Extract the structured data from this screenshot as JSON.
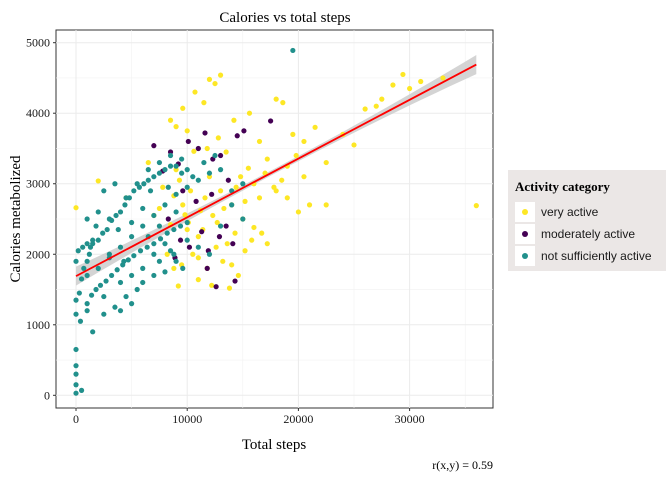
{
  "chart_data": {
    "type": "scatter",
    "title": "Calories vs total steps",
    "xlabel": "Total steps",
    "ylabel": "Calories metabolized",
    "xlim": [
      -1800,
      37500
    ],
    "ylim": [
      -180,
      5180
    ],
    "xticks": [
      "0",
      "10000",
      "20000",
      "30000"
    ],
    "yticks": [
      "0",
      "1000",
      "2000",
      "3000",
      "4000",
      "5000"
    ],
    "grid": true,
    "annotation": "r(x,y) = 0.59",
    "legend": {
      "title": "Activity category",
      "placement": "right",
      "entries": [
        "very active",
        "moderately active",
        "not sufficiently active"
      ]
    },
    "trend_line": {
      "color": "#ff0000",
      "points": [
        [
          0,
          1690
        ],
        [
          36000,
          4690
        ]
      ],
      "band_color": "#cccccc"
    },
    "series": [
      {
        "name": "very active",
        "color": "#fde725",
        "points": [
          [
            0,
            2660
          ],
          [
            2000,
            3040
          ],
          [
            4500,
            2800
          ],
          [
            6500,
            3300
          ],
          [
            7000,
            2550
          ],
          [
            7500,
            2650
          ],
          [
            7800,
            2950
          ],
          [
            8200,
            2000
          ],
          [
            8500,
            2420
          ],
          [
            8800,
            2830
          ],
          [
            9000,
            3200
          ],
          [
            9300,
            3050
          ],
          [
            9600,
            2700
          ],
          [
            9800,
            2560
          ],
          [
            10000,
            2350
          ],
          [
            10300,
            2900
          ],
          [
            10600,
            3460
          ],
          [
            11000,
            2250
          ],
          [
            11200,
            2620
          ],
          [
            11600,
            2800
          ],
          [
            12000,
            3100
          ],
          [
            12300,
            2550
          ],
          [
            12700,
            2450
          ],
          [
            13000,
            2900
          ],
          [
            13300,
            2650
          ],
          [
            13600,
            2150
          ],
          [
            14000,
            2700
          ],
          [
            14400,
            2950
          ],
          [
            14800,
            3100
          ],
          [
            15200,
            2750
          ],
          [
            15500,
            3220
          ],
          [
            16000,
            2380
          ],
          [
            16500,
            2800
          ],
          [
            17000,
            3150
          ],
          [
            17800,
            2950
          ],
          [
            18500,
            3050
          ],
          [
            19000,
            3250
          ],
          [
            19800,
            3400
          ],
          [
            20500,
            3600
          ],
          [
            21500,
            3800
          ],
          [
            22500,
            3300
          ],
          [
            20000,
            2600
          ],
          [
            22500,
            2700
          ],
          [
            24000,
            3700
          ],
          [
            25000,
            3550
          ],
          [
            26000,
            4060
          ],
          [
            27000,
            4100
          ],
          [
            27500,
            4200
          ],
          [
            28500,
            4400
          ],
          [
            29400,
            4550
          ],
          [
            30000,
            4350
          ],
          [
            31000,
            4450
          ],
          [
            33000,
            4500
          ],
          [
            36000,
            2690
          ],
          [
            12500,
            4420
          ],
          [
            13000,
            4540
          ],
          [
            12000,
            4480
          ],
          [
            11500,
            4150
          ],
          [
            10700,
            4300
          ],
          [
            9600,
            4070
          ],
          [
            9000,
            3810
          ],
          [
            8500,
            3900
          ],
          [
            10000,
            3750
          ],
          [
            11800,
            3500
          ],
          [
            12800,
            3650
          ],
          [
            13500,
            3450
          ],
          [
            14200,
            3900
          ],
          [
            15600,
            4000
          ],
          [
            16500,
            3600
          ],
          [
            17200,
            3350
          ],
          [
            18000,
            4200
          ],
          [
            18600,
            4150
          ],
          [
            19500,
            3700
          ],
          [
            20500,
            3100
          ],
          [
            9500,
            1850
          ],
          [
            10500,
            2000
          ],
          [
            11000,
            1640
          ],
          [
            11800,
            1800
          ],
          [
            12600,
            2100
          ],
          [
            13200,
            1900
          ],
          [
            14000,
            1850
          ],
          [
            14600,
            1700
          ],
          [
            15200,
            2050
          ],
          [
            15800,
            2200
          ],
          [
            16700,
            2300
          ],
          [
            17200,
            2150
          ],
          [
            11000,
            1950
          ],
          [
            12200,
            1560
          ],
          [
            13800,
            1520
          ],
          [
            9200,
            1550
          ],
          [
            8800,
            1800
          ],
          [
            10100,
            2450
          ],
          [
            11400,
            2350
          ],
          [
            15000,
            2500
          ],
          [
            14300,
            2300
          ],
          [
            18000,
            2900
          ],
          [
            16000,
            3000
          ],
          [
            19000,
            2800
          ],
          [
            21000,
            2700
          ]
        ]
      },
      {
        "name": "moderately active",
        "color": "#440154",
        "points": [
          [
            7000,
            3540
          ],
          [
            7800,
            3180
          ],
          [
            8500,
            3450
          ],
          [
            9200,
            3280
          ],
          [
            10100,
            3600
          ],
          [
            11000,
            3500
          ],
          [
            11600,
            3720
          ],
          [
            12300,
            3350
          ],
          [
            13000,
            3400
          ],
          [
            14500,
            3680
          ],
          [
            15100,
            3750
          ],
          [
            17500,
            3890
          ],
          [
            9400,
            2200
          ],
          [
            10200,
            2100
          ],
          [
            11800,
            1800
          ],
          [
            12600,
            1540
          ],
          [
            14300,
            1620
          ],
          [
            8900,
            1950
          ],
          [
            11300,
            2320
          ],
          [
            12900,
            2250
          ],
          [
            13500,
            2400
          ],
          [
            14100,
            2150
          ],
          [
            10800,
            2750
          ],
          [
            12200,
            2850
          ],
          [
            9600,
            2900
          ],
          [
            13700,
            3050
          ],
          [
            8300,
            2500
          ],
          [
            11900,
            2050
          ]
        ]
      },
      {
        "name": "not sufficiently active",
        "color": "#21908c",
        "points": [
          [
            0,
            30
          ],
          [
            0,
            150
          ],
          [
            0,
            300
          ],
          [
            0,
            420
          ],
          [
            0,
            650
          ],
          [
            500,
            70
          ],
          [
            0,
            1350
          ],
          [
            300,
            1450
          ],
          [
            500,
            1650
          ],
          [
            700,
            1800
          ],
          [
            1000,
            1900
          ],
          [
            1200,
            2000
          ],
          [
            1500,
            2150
          ],
          [
            2000,
            2200
          ],
          [
            2400,
            2300
          ],
          [
            2800,
            2350
          ],
          [
            3200,
            2480
          ],
          [
            3600,
            2550
          ],
          [
            4000,
            2600
          ],
          [
            4400,
            2700
          ],
          [
            4800,
            2800
          ],
          [
            5200,
            2900
          ],
          [
            5700,
            2950
          ],
          [
            6100,
            3000
          ],
          [
            6500,
            3050
          ],
          [
            7000,
            3100
          ],
          [
            7500,
            3150
          ],
          [
            8000,
            3200
          ],
          [
            8500,
            3250
          ],
          [
            9000,
            3250
          ],
          [
            9500,
            3150
          ],
          [
            10000,
            3200
          ],
          [
            1000,
            1300
          ],
          [
            1400,
            1420
          ],
          [
            1800,
            1500
          ],
          [
            2200,
            1560
          ],
          [
            2700,
            1620
          ],
          [
            3200,
            1700
          ],
          [
            3700,
            1780
          ],
          [
            4200,
            1850
          ],
          [
            4700,
            1920
          ],
          [
            5200,
            1980
          ],
          [
            5800,
            2050
          ],
          [
            6400,
            2100
          ],
          [
            7000,
            2150
          ],
          [
            7600,
            2220
          ],
          [
            8200,
            2300
          ],
          [
            8800,
            2350
          ],
          [
            9400,
            2400
          ],
          [
            10000,
            2450
          ],
          [
            0,
            1150
          ],
          [
            400,
            1050
          ],
          [
            1000,
            1200
          ],
          [
            2500,
            1400
          ],
          [
            4000,
            1600
          ],
          [
            0,
            1900
          ],
          [
            200,
            2050
          ],
          [
            600,
            2100
          ],
          [
            1000,
            2150
          ],
          [
            1500,
            2200
          ],
          [
            1000,
            1700
          ],
          [
            2000,
            1800
          ],
          [
            3000,
            1950
          ],
          [
            4000,
            2100
          ],
          [
            5000,
            2250
          ],
          [
            6000,
            2400
          ],
          [
            7000,
            2550
          ],
          [
            8000,
            2700
          ],
          [
            9000,
            2850
          ],
          [
            10000,
            2950
          ],
          [
            11000,
            3050
          ],
          [
            12000,
            3150
          ],
          [
            6500,
            2250
          ],
          [
            6000,
            1600
          ],
          [
            7000,
            1700
          ],
          [
            8000,
            1750
          ],
          [
            9000,
            1900
          ],
          [
            7500,
            1900
          ],
          [
            8500,
            2050
          ],
          [
            5500,
            1500
          ],
          [
            4500,
            1400
          ],
          [
            3500,
            1250
          ],
          [
            2500,
            1150
          ],
          [
            1500,
            900
          ],
          [
            2500,
            2900
          ],
          [
            3000,
            2500
          ],
          [
            3500,
            3000
          ],
          [
            4500,
            2800
          ],
          [
            5500,
            3000
          ],
          [
            6500,
            3200
          ],
          [
            7500,
            3300
          ],
          [
            8500,
            3400
          ],
          [
            9500,
            3350
          ],
          [
            10500,
            3100
          ],
          [
            11500,
            3300
          ],
          [
            12500,
            3400
          ],
          [
            13000,
            3200
          ],
          [
            14000,
            2900
          ],
          [
            15000,
            3000
          ],
          [
            1000,
            2500
          ],
          [
            1800,
            2400
          ],
          [
            4000,
            1200
          ],
          [
            5000,
            1300
          ],
          [
            6000,
            1800
          ],
          [
            7000,
            2000
          ],
          [
            8000,
            2150
          ],
          [
            9000,
            2600
          ],
          [
            10000,
            2200
          ],
          [
            11000,
            2100
          ],
          [
            12000,
            2000
          ],
          [
            13000,
            2400
          ],
          [
            14000,
            2700
          ],
          [
            15000,
            2500
          ],
          [
            19500,
            4890
          ],
          [
            3000,
            2000
          ],
          [
            5000,
            1700
          ],
          [
            7500,
            2400
          ],
          [
            6000,
            2650
          ],
          [
            8800,
            2000
          ],
          [
            9600,
            1800
          ],
          [
            5000,
            2450
          ],
          [
            2000,
            2600
          ],
          [
            3800,
            2350
          ],
          [
            4300,
            1900
          ],
          [
            6700,
            2900
          ],
          [
            8300,
            2950
          ],
          [
            1300,
            2100
          ]
        ]
      }
    ]
  }
}
